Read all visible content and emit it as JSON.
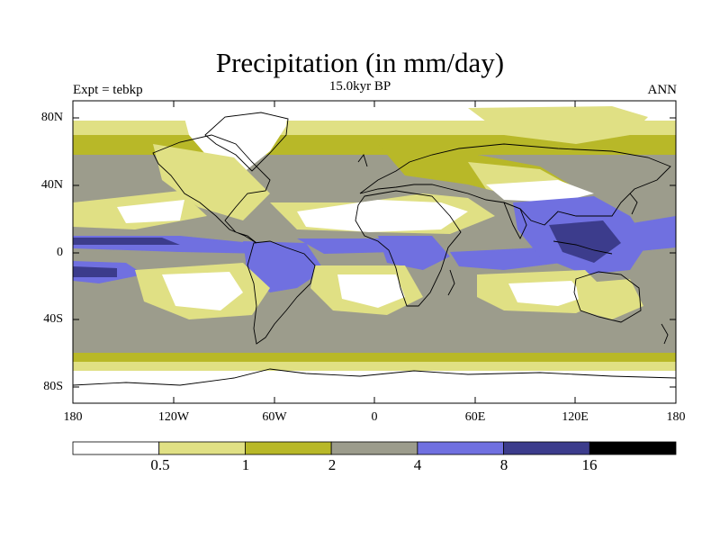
{
  "title": "Precipitation (in mm/day)",
  "subtitle_left": "Expt = tebkp",
  "subtitle_center": "15.0kyr BP",
  "subtitle_right": "ANN",
  "lat_labels": [
    "80N",
    "40N",
    "0",
    "40S",
    "80S"
  ],
  "lon_labels": [
    "180",
    "120W",
    "60W",
    "0",
    "60E",
    "120E",
    "180"
  ],
  "colorbar": {
    "levels": [
      "0.5",
      "1",
      "2",
      "4",
      "8",
      "16"
    ],
    "colors": [
      "#ffffff",
      "#e0e084",
      "#b8b828",
      "#9c9c8c",
      "#7070e0",
      "#3c3c8c",
      "#000000"
    ]
  },
  "map_background": "#9c9c8c",
  "coast_color": "#000000"
}
